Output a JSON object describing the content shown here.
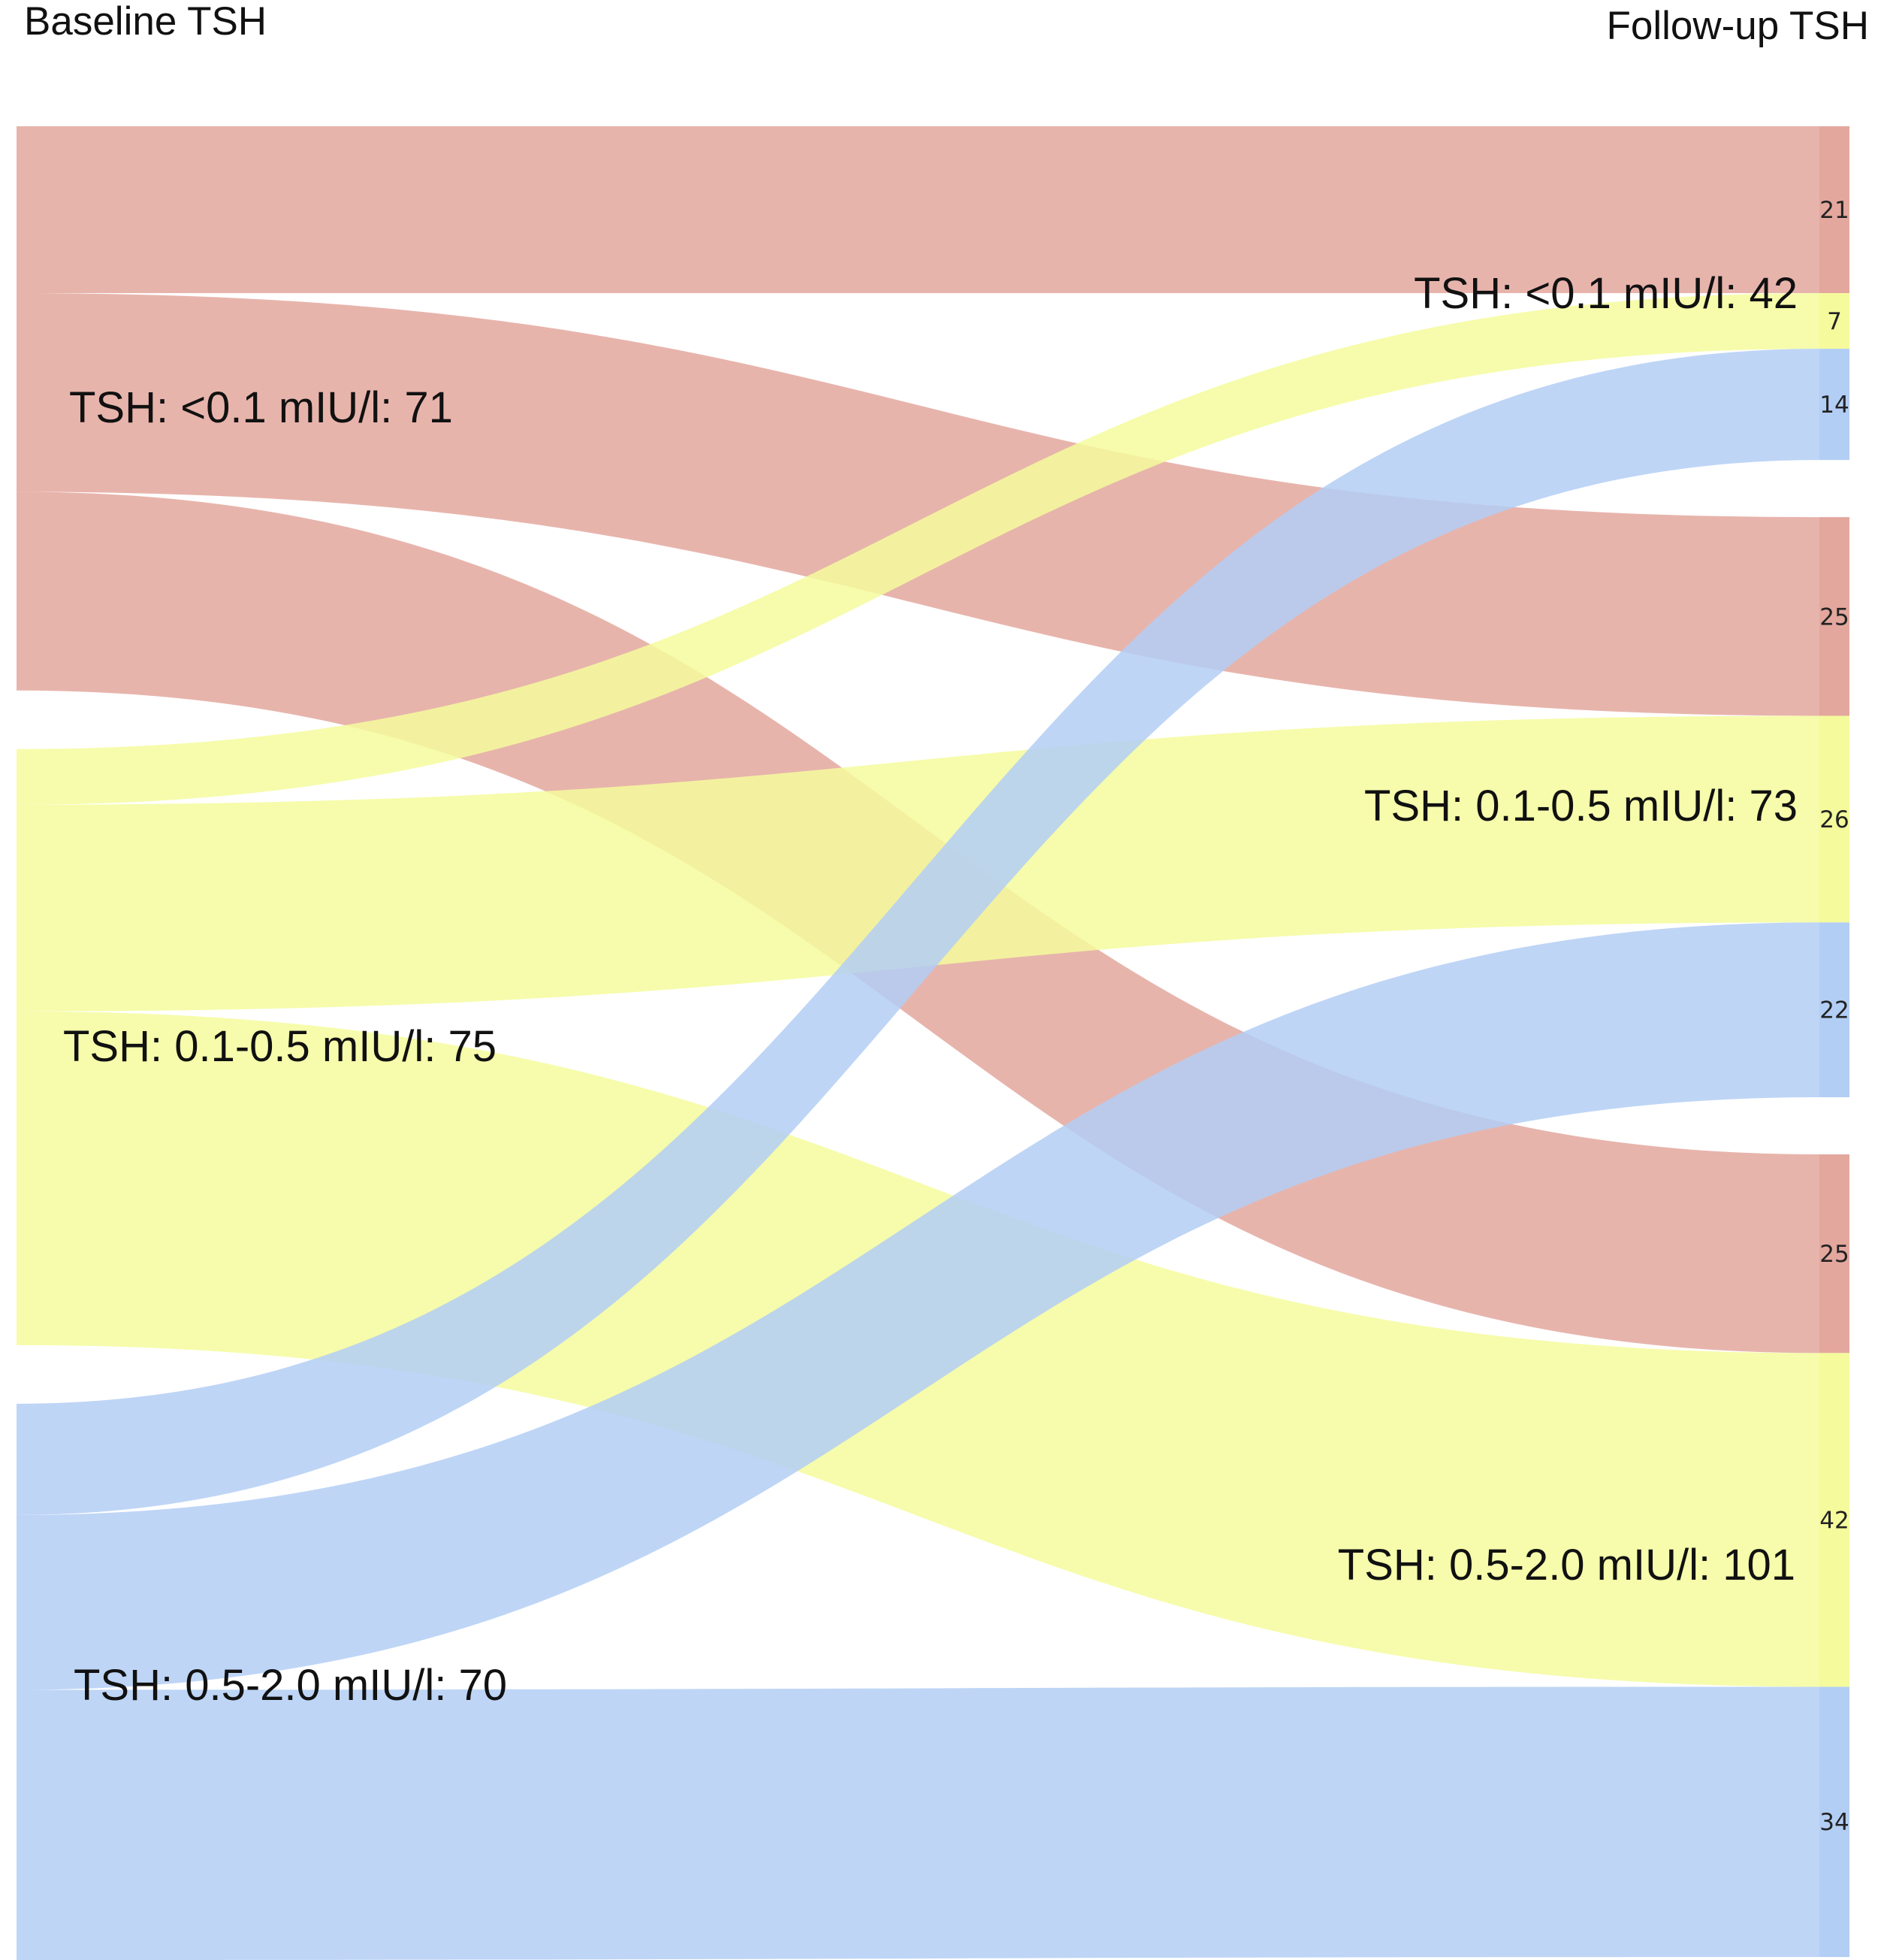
{
  "chart_data": {
    "type": "sankey",
    "left_title": "Baseline TSH",
    "right_title": "Follow-up TSH",
    "colors": {
      "<0.1": "#e3a79e",
      "0.1-0.5": "#f5fb9c",
      "0.5-2.0": "#b3cef5"
    },
    "left_nodes": [
      {
        "id": "<0.1",
        "label": "TSH: <0.1 mIU/l: 71",
        "value": 71
      },
      {
        "id": "0.1-0.5",
        "label": "TSH: 0.1-0.5 mIU/l: 75",
        "value": 75
      },
      {
        "id": "0.5-2.0",
        "label": "TSH: 0.5-2.0 mIU/l: 70",
        "value": 70
      }
    ],
    "right_nodes": [
      {
        "id": "<0.1",
        "label": "TSH: <0.1 mIU/l: 42",
        "value": 42
      },
      {
        "id": "0.1-0.5",
        "label": "TSH: 0.1-0.5 mIU/l: 73",
        "value": 73
      },
      {
        "id": "0.5-2.0",
        "label": "TSH: 0.5-2.0 mIU/l: 101",
        "value": 101
      }
    ],
    "flows": [
      {
        "source": "<0.1",
        "target": "<0.1",
        "value": 21,
        "label": "21"
      },
      {
        "source": "<0.1",
        "target": "0.1-0.5",
        "value": 25,
        "label": "25"
      },
      {
        "source": "<0.1",
        "target": "0.5-2.0",
        "value": 25,
        "label": "25"
      },
      {
        "source": "0.1-0.5",
        "target": "<0.1",
        "value": 7,
        "label": "7"
      },
      {
        "source": "0.1-0.5",
        "target": "0.1-0.5",
        "value": 26,
        "label": "26"
      },
      {
        "source": "0.1-0.5",
        "target": "0.5-2.0",
        "value": 42,
        "label": "42"
      },
      {
        "source": "0.5-2.0",
        "target": "<0.1",
        "value": 14,
        "label": "14"
      },
      {
        "source": "0.5-2.0",
        "target": "0.1-0.5",
        "value": 22,
        "label": "22"
      },
      {
        "source": "0.5-2.0",
        "target": "0.5-2.0",
        "value": 34,
        "label": "34"
      }
    ]
  }
}
